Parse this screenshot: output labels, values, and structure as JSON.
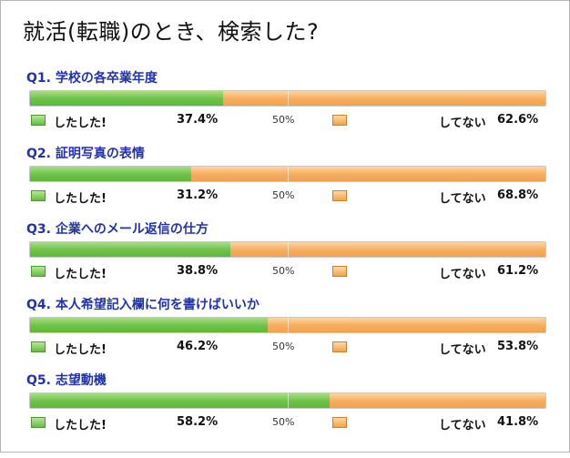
{
  "title": "就活(転職)のとき、検索した?",
  "legend": {
    "yes_label": "したした!",
    "no_label": "してない",
    "midpoint_label": "50%"
  },
  "colors": {
    "yes": "#6cc246",
    "no": "#f6ac5c",
    "question": "#2233aa"
  },
  "chart_data": {
    "type": "bar",
    "orientation": "horizontal-stacked-100",
    "title": "就活(転職)のとき、検索した?",
    "categories": [
      "Q1. 学校の各卒業年度",
      "Q2. 証明写真の表情",
      "Q3. 企業へのメール返信の仕方",
      "Q4. 本人希望記入欄に何を書けばいいか",
      "Q5. 志望動機"
    ],
    "series": [
      {
        "name": "したした!",
        "values": [
          37.4,
          31.2,
          38.8,
          46.2,
          58.2
        ],
        "labels": [
          "37.4%",
          "31.2%",
          "38.8%",
          "46.2%",
          "58.2%"
        ]
      },
      {
        "name": "してない",
        "values": [
          62.6,
          68.8,
          61.2,
          53.8,
          41.8
        ],
        "labels": [
          "62.6%",
          "68.8%",
          "61.2%",
          "53.8%",
          "41.8%"
        ]
      }
    ],
    "xlim": [
      0,
      100
    ],
    "grid": false
  }
}
